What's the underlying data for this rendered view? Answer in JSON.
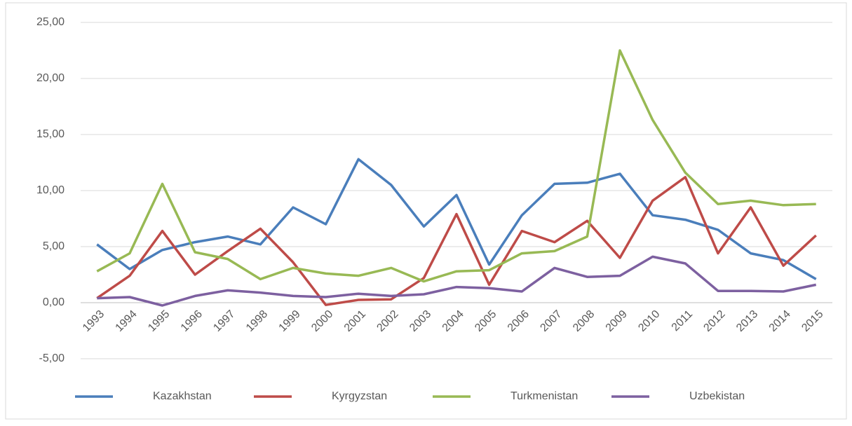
{
  "chart_data": {
    "type": "line",
    "categories": [
      "1993",
      "1994",
      "1995",
      "1996",
      "1997",
      "1998",
      "1999",
      "2000",
      "2001",
      "2002",
      "2003",
      "2004",
      "2005",
      "2006",
      "2007",
      "2008",
      "2009",
      "2010",
      "2011",
      "2012",
      "2013",
      "2014",
      "2015"
    ],
    "series": [
      {
        "name": "Kazakhstan",
        "color": "#4a7ebb",
        "values": [
          5.2,
          3.0,
          4.7,
          5.4,
          5.9,
          5.2,
          8.5,
          7.0,
          12.8,
          10.5,
          6.8,
          9.6,
          3.4,
          7.8,
          10.6,
          10.7,
          11.5,
          7.8,
          7.4,
          6.5,
          4.4,
          3.8,
          2.1
        ]
      },
      {
        "name": "Kyrgyzstan",
        "color": "#be4b48",
        "values": [
          0.4,
          2.4,
          6.4,
          2.5,
          4.6,
          6.6,
          3.6,
          -0.2,
          0.25,
          0.3,
          2.2,
          7.9,
          1.6,
          6.4,
          5.4,
          7.3,
          4.0,
          9.1,
          11.2,
          4.4,
          8.5,
          3.3,
          6.0
        ]
      },
      {
        "name": "Turkmenistan",
        "color": "#98b954",
        "values": [
          2.8,
          4.4,
          10.6,
          4.5,
          3.9,
          2.1,
          3.1,
          2.6,
          2.4,
          3.1,
          1.9,
          2.8,
          2.9,
          4.4,
          4.6,
          5.9,
          22.5,
          16.3,
          11.6,
          8.8,
          9.1,
          8.7,
          8.8
        ]
      },
      {
        "name": "Uzbekistan",
        "color": "#7d60a0",
        "values": [
          0.4,
          0.5,
          -0.25,
          0.6,
          1.1,
          0.9,
          0.6,
          0.5,
          0.8,
          0.6,
          0.75,
          1.4,
          1.3,
          1.0,
          3.1,
          2.3,
          2.4,
          4.1,
          3.5,
          1.05,
          1.05,
          1.0,
          1.6
        ]
      }
    ],
    "ylim": [
      -5,
      25
    ],
    "yticks": [
      {
        "value": -5,
        "label": "-5,00"
      },
      {
        "value": 0,
        "label": "0,00"
      },
      {
        "value": 5,
        "label": "5,00"
      },
      {
        "value": 10,
        "label": "10,00"
      },
      {
        "value": 15,
        "label": "15,00"
      },
      {
        "value": 20,
        "label": "20,00"
      },
      {
        "value": 25,
        "label": "25,00"
      }
    ],
    "grid": true,
    "legend": "bottom"
  }
}
